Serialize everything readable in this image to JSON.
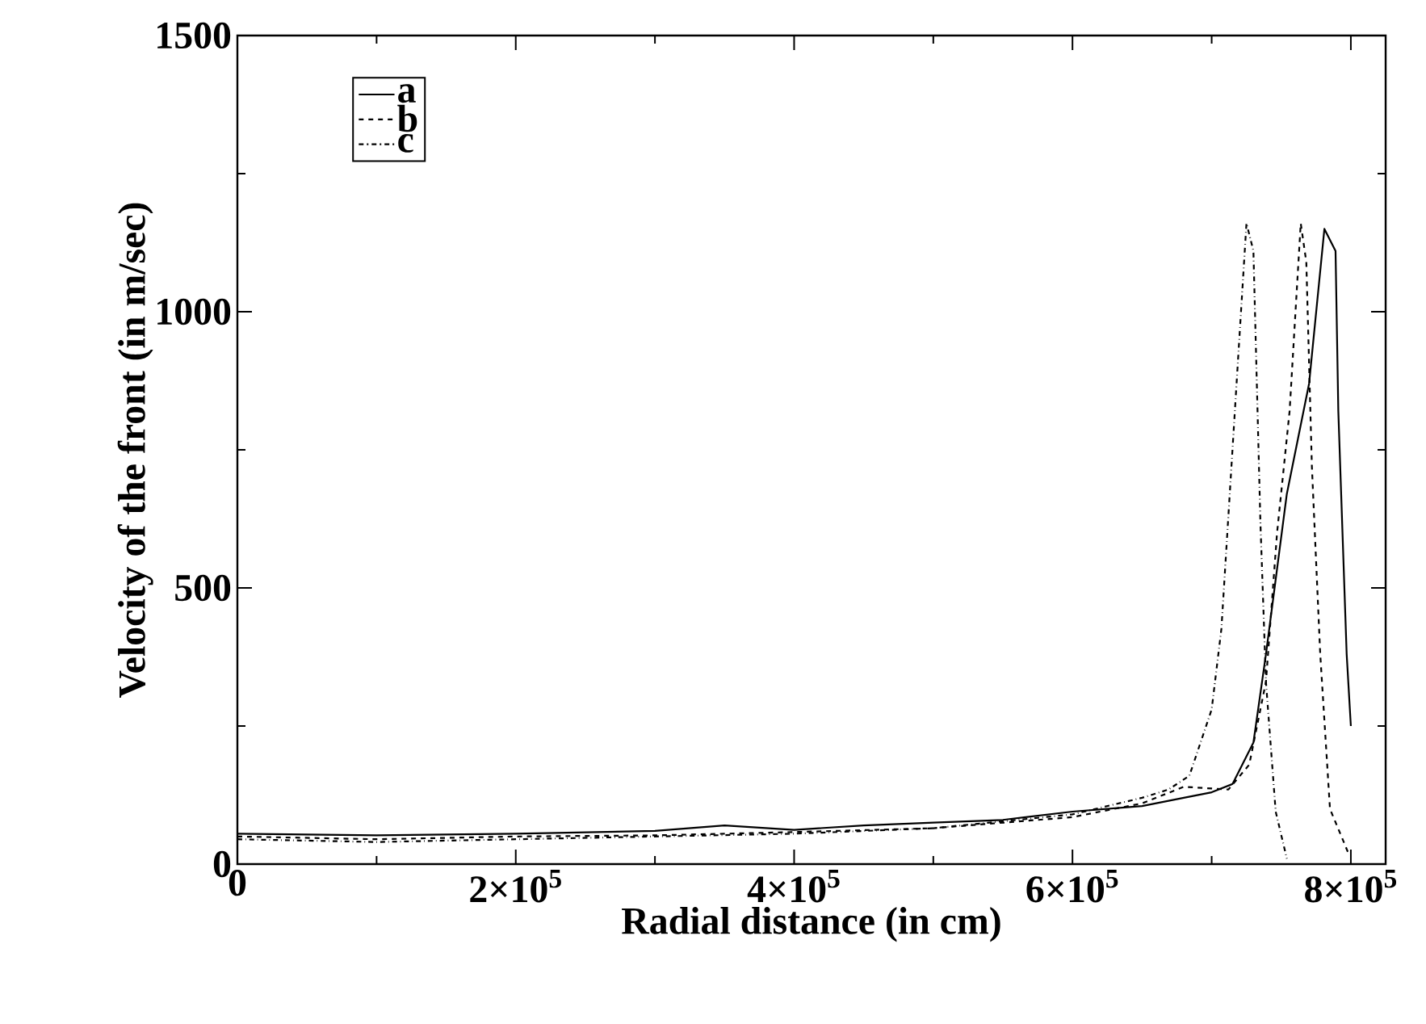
{
  "chart_data": {
    "type": "line",
    "xlabel": "Radial distance (in cm)",
    "ylabel": "Velocity of the front (in m/sec)",
    "xlim": [
      0,
      825000
    ],
    "ylim": [
      0,
      1500
    ],
    "xticks": [
      0,
      {
        "value": 200000,
        "label": "2×10$^{5}$"
      },
      {
        "value": 400000,
        "label": "4×10$^{5}$"
      },
      {
        "value": 600000,
        "label": "6×10$^{5}$"
      },
      {
        "value": 800000,
        "label": "8×10$^{5}$"
      }
    ],
    "yticks": [
      0,
      500,
      1000,
      1500
    ],
    "grid": false,
    "legend": "top left",
    "marker": "none",
    "series": [
      {
        "name": "a",
        "color": "#000000",
        "line_style": "solid",
        "x": [
          0,
          100000,
          200000,
          300000,
          350000,
          400000,
          450000,
          500000,
          550000,
          600000,
          650000,
          680000,
          700000,
          715000,
          730000,
          739000,
          754000,
          770000,
          781000,
          789000,
          791000,
          797000,
          800000
        ],
        "values": [
          55,
          52,
          55,
          60,
          70,
          62,
          70,
          75,
          80,
          95,
          105,
          120,
          130,
          145,
          220,
          380,
          670,
          870,
          1150,
          1110,
          820,
          380,
          250
        ]
      },
      {
        "name": "b",
        "color": "#000000",
        "line_style": "dashed",
        "x": [
          0,
          100000,
          200000,
          300000,
          400000,
          500000,
          600000,
          650000,
          680000,
          712000,
          727000,
          739000,
          747000,
          756000,
          764000,
          768000,
          772000,
          778000,
          785000,
          799000
        ],
        "values": [
          50,
          45,
          50,
          52,
          58,
          65,
          85,
          110,
          140,
          135,
          180,
          330,
          600,
          820,
          1160,
          1090,
          720,
          380,
          100,
          15
        ]
      },
      {
        "name": "c",
        "color": "#000000",
        "line_style": "dashdot",
        "x": [
          0,
          100000,
          200000,
          300000,
          400000,
          500000,
          600000,
          650000,
          669000,
          684000,
          700000,
          707000,
          725000,
          730000,
          735000,
          739000,
          746000,
          754000
        ],
        "values": [
          45,
          40,
          45,
          50,
          55,
          65,
          90,
          120,
          135,
          160,
          280,
          426,
          1160,
          1110,
          620,
          330,
          95,
          10
        ]
      }
    ]
  }
}
